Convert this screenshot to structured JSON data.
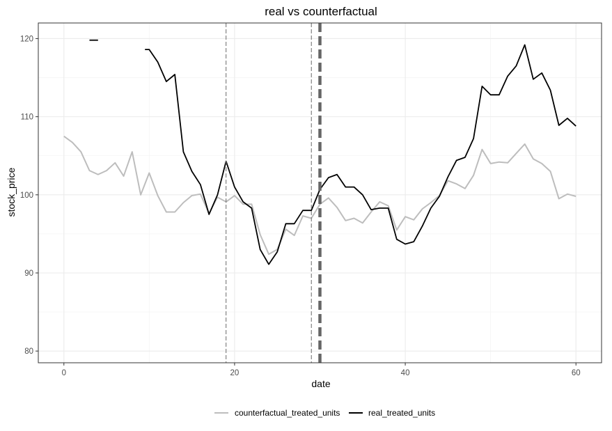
{
  "chart_data": {
    "type": "line",
    "title": "real vs counterfactual",
    "xlabel": "date",
    "ylabel": "stock_price",
    "xlim": [
      -3,
      63
    ],
    "ylim": [
      78.5,
      122
    ],
    "x_ticks": [
      0,
      20,
      40,
      60
    ],
    "y_ticks": [
      80,
      90,
      100,
      110,
      120
    ],
    "grid": true,
    "legend_position": "bottom",
    "vlines": [
      {
        "x": 19,
        "style": "dashed",
        "weight": "thin"
      },
      {
        "x": 29,
        "style": "dashed",
        "weight": "thin"
      },
      {
        "x": 30,
        "style": "dashed",
        "weight": "thick"
      }
    ],
    "series": [
      {
        "name": "counterfactual_treated_units",
        "color": "#bdbdbd",
        "points": [
          [
            0,
            107.5
          ],
          [
            1,
            106.7
          ],
          [
            2,
            105.5
          ],
          [
            3,
            103.1
          ],
          [
            4,
            102.6
          ],
          [
            5,
            103.1
          ],
          [
            6,
            104.1
          ],
          [
            7,
            102.4
          ],
          [
            8,
            105.5
          ],
          [
            9,
            100.0
          ],
          [
            10,
            102.8
          ],
          [
            11,
            99.9
          ],
          [
            12,
            97.8
          ],
          [
            13,
            97.8
          ],
          [
            14,
            99.0
          ],
          [
            15,
            99.9
          ],
          [
            16,
            100.1
          ],
          [
            17,
            97.6
          ],
          [
            18,
            99.7
          ],
          [
            19,
            99.1
          ],
          [
            20,
            99.9
          ],
          [
            21,
            98.8
          ],
          [
            22,
            98.8
          ],
          [
            23,
            94.9
          ],
          [
            24,
            92.4
          ],
          [
            25,
            93.0
          ],
          [
            26,
            95.6
          ],
          [
            27,
            94.8
          ],
          [
            28,
            97.3
          ],
          [
            29,
            97.0
          ],
          [
            30,
            98.8
          ],
          [
            31,
            99.6
          ],
          [
            32,
            98.4
          ],
          [
            33,
            96.7
          ],
          [
            34,
            97.0
          ],
          [
            35,
            96.4
          ],
          [
            36,
            97.8
          ],
          [
            37,
            99.1
          ],
          [
            38,
            98.6
          ],
          [
            39,
            95.5
          ],
          [
            40,
            97.2
          ],
          [
            41,
            96.8
          ],
          [
            42,
            98.2
          ],
          [
            43,
            99.0
          ],
          [
            44,
            99.9
          ],
          [
            45,
            101.8
          ],
          [
            46,
            101.4
          ],
          [
            47,
            100.8
          ],
          [
            48,
            102.5
          ],
          [
            49,
            105.8
          ],
          [
            50,
            104.0
          ],
          [
            51,
            104.2
          ],
          [
            52,
            104.1
          ],
          [
            53,
            105.3
          ],
          [
            54,
            106.5
          ],
          [
            55,
            104.6
          ],
          [
            56,
            104.0
          ],
          [
            57,
            103.0
          ],
          [
            58,
            99.5
          ],
          [
            59,
            100.1
          ],
          [
            60,
            99.8
          ]
        ]
      },
      {
        "name": "real_treated_units",
        "color": "#000000",
        "segments": [
          [
            [
              3,
              119.8
            ],
            [
              4,
              119.8
            ]
          ],
          [
            [
              9.5,
              118.6
            ],
            [
              10,
              118.6
            ],
            [
              11,
              117.0
            ],
            [
              12,
              114.5
            ],
            [
              13,
              115.4
            ],
            [
              14,
              105.5
            ],
            [
              15,
              103.0
            ],
            [
              16,
              101.3
            ],
            [
              17,
              97.5
            ],
            [
              18,
              100.0
            ],
            [
              19,
              104.3
            ],
            [
              20,
              101.0
            ],
            [
              21,
              99.1
            ],
            [
              22,
              98.3
            ],
            [
              23,
              93.0
            ],
            [
              24,
              91.1
            ],
            [
              25,
              92.7
            ],
            [
              26,
              96.3
            ],
            [
              27,
              96.3
            ],
            [
              28,
              98.0
            ],
            [
              29,
              98.0
            ],
            [
              30,
              100.7
            ],
            [
              31,
              102.2
            ],
            [
              32,
              102.6
            ],
            [
              33,
              101.0
            ],
            [
              34,
              101.0
            ],
            [
              35,
              100.0
            ],
            [
              36,
              98.1
            ],
            [
              37,
              98.3
            ],
            [
              38,
              98.3
            ],
            [
              39,
              94.3
            ],
            [
              40,
              93.7
            ],
            [
              41,
              94.0
            ],
            [
              42,
              96.0
            ],
            [
              43,
              98.3
            ],
            [
              44,
              99.8
            ],
            [
              45,
              102.3
            ],
            [
              46,
              104.4
            ],
            [
              47,
              104.8
            ],
            [
              48,
              107.2
            ],
            [
              49,
              113.9
            ],
            [
              50,
              112.8
            ],
            [
              51,
              112.8
            ],
            [
              52,
              115.2
            ],
            [
              53,
              116.5
            ],
            [
              54,
              119.2
            ],
            [
              55,
              114.8
            ],
            [
              56,
              115.6
            ],
            [
              57,
              113.4
            ],
            [
              58,
              108.9
            ],
            [
              59,
              109.8
            ],
            [
              60,
              108.8
            ]
          ]
        ]
      }
    ]
  }
}
